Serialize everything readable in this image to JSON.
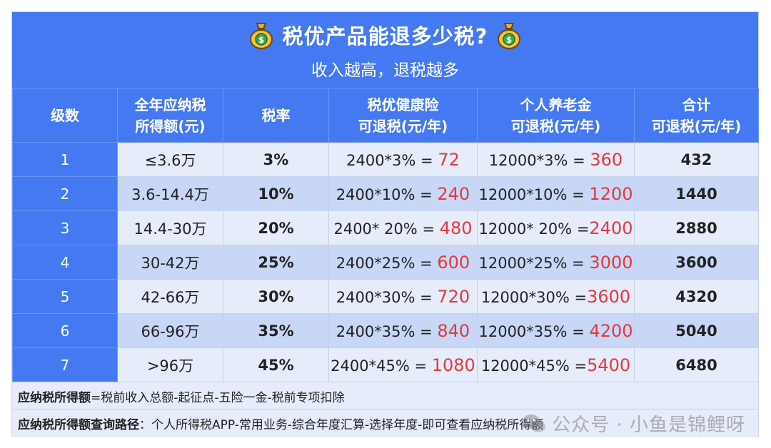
{
  "header": {
    "title": "税优产品能退多少税?",
    "subtitle": "收入越高，退税越多",
    "icon_left": "money-bag-icon",
    "icon_right": "money-bag-icon"
  },
  "table": {
    "columns": [
      {
        "line1": "级数",
        "line2": ""
      },
      {
        "line1": "全年应纳税",
        "line2": "所得额(元)"
      },
      {
        "line1": "税率",
        "line2": ""
      },
      {
        "line1": "税优健康险",
        "line2": "可退税(元/年)"
      },
      {
        "line1": "个人养老金",
        "line2": "可退税(元/年)"
      },
      {
        "line1": "合计",
        "line2": "可退税(元/年)"
      }
    ],
    "rows": [
      {
        "level": "1",
        "income": "≤3.6万",
        "rate": "3%",
        "health_expr": "2400*3% = ",
        "health_val": "72",
        "pension_expr": "12000*3% = ",
        "pension_val": "360",
        "total": "432"
      },
      {
        "level": "2",
        "income": "3.6-14.4万",
        "rate": "10%",
        "health_expr": "2400*10% = ",
        "health_val": "240",
        "pension_expr": "12000*10% = ",
        "pension_val": "1200",
        "total": "1440"
      },
      {
        "level": "3",
        "income": "14.4-30万",
        "rate": "20%",
        "health_expr": "2400* 20% = ",
        "health_val": "480",
        "pension_expr": "12000* 20% =",
        "pension_val": "2400",
        "total": "2880"
      },
      {
        "level": "4",
        "income": "30-42万",
        "rate": "25%",
        "health_expr": "2400*25% = ",
        "health_val": "600",
        "pension_expr": "12000*25% = ",
        "pension_val": "3000",
        "total": "3600"
      },
      {
        "level": "5",
        "income": "42-66万",
        "rate": "30%",
        "health_expr": "2400*30% = ",
        "health_val": "720",
        "pension_expr": "12000*30% =",
        "pension_val": "3600",
        "total": "4320"
      },
      {
        "level": "6",
        "income": "66-96万",
        "rate": "35%",
        "health_expr": "2400*35% = ",
        "health_val": "840",
        "pension_expr": "12000*35% = ",
        "pension_val": "4200",
        "total": "5040"
      },
      {
        "level": "7",
        "income": ">96万",
        "rate": "45%",
        "health_expr": "2400*45% = ",
        "health_val": "1080",
        "pension_expr": "12000*45% =",
        "pension_val": "5400",
        "total": "6480"
      }
    ]
  },
  "notes": {
    "definition_label": "应纳税所得额",
    "definition_text": "=税前收入总额-起征点-五险一金-税前专项扣除",
    "path_label": "应纳税所得额查询路径",
    "path_text": "：个人所得税APP-常用业务-综合年度汇算-选择年度-即可查看应纳税所得额"
  },
  "watermark": {
    "text": "公众号 · 小鱼是锦鲤呀",
    "icon": "wechat-icon"
  },
  "colors": {
    "primary_blue": "#4479f2",
    "row_light": "#e6ecf9",
    "row_dark": "#c9d7f7",
    "accent_red": "#e2393c"
  }
}
